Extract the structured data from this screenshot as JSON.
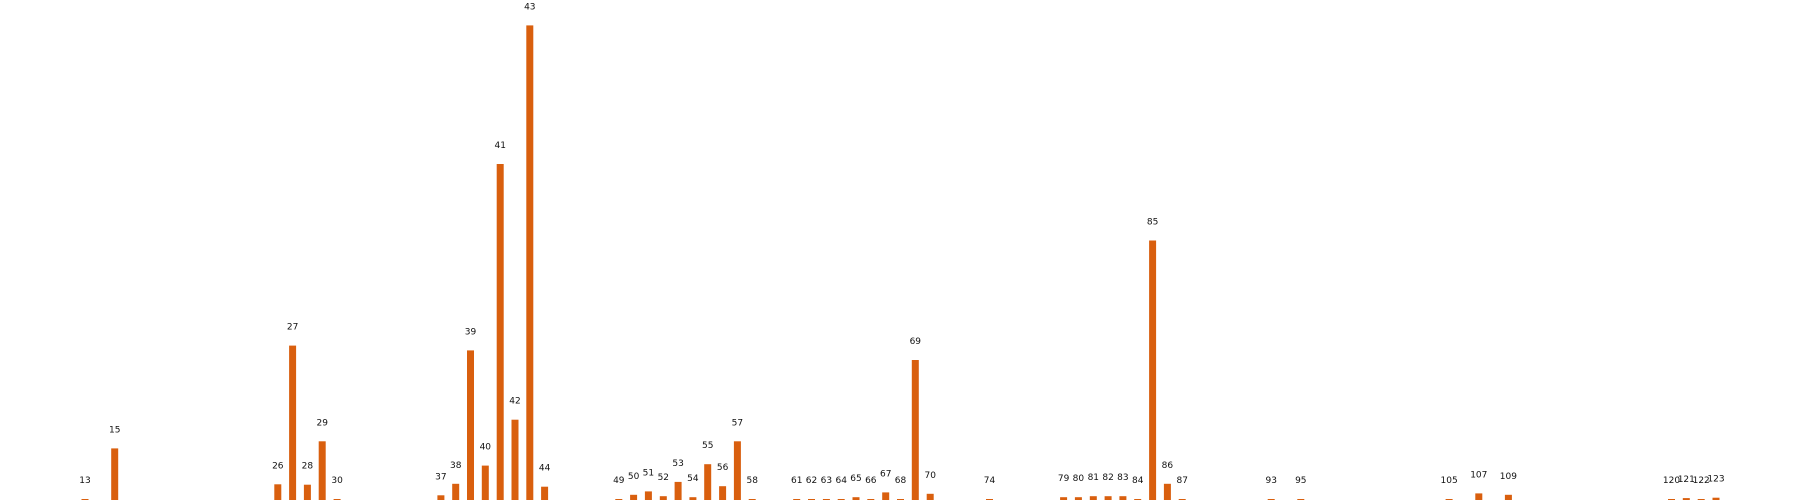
{
  "chart_data": {
    "type": "bar",
    "title": "",
    "xlabel": "",
    "ylabel": "",
    "ylim": [
      0,
      100
    ],
    "grid": false,
    "legend": "none",
    "bar_color": "#d95f0e",
    "x": [
      13,
      15,
      26,
      27,
      28,
      29,
      30,
      37,
      38,
      39,
      40,
      41,
      42,
      43,
      44,
      49,
      50,
      51,
      52,
      53,
      54,
      55,
      56,
      57,
      58,
      61,
      62,
      63,
      64,
      65,
      66,
      67,
      68,
      69,
      70,
      74,
      79,
      80,
      81,
      82,
      83,
      84,
      85,
      86,
      87,
      93,
      95,
      105,
      107,
      109,
      120,
      121,
      122,
      123
    ],
    "values": [
      0.2,
      11,
      3.5,
      32.5,
      3.4,
      12.5,
      0.4,
      1.2,
      3.6,
      31.5,
      7.4,
      70.5,
      17,
      99.5,
      3,
      0.3,
      1.3,
      2,
      1,
      4,
      0.8,
      7.7,
      3.1,
      12.5,
      0.4,
      0.3,
      0.4,
      0.4,
      0.3,
      0.8,
      0.3,
      1.8,
      0.2,
      29.5,
      1.5,
      0.2,
      0.8,
      0.8,
      1,
      1,
      1,
      0.3,
      54.5,
      3.6,
      0.2,
      0.4,
      0.4,
      0.2,
      1.6,
      1.3,
      0.2,
      0.6,
      0.3,
      0.7
    ]
  }
}
